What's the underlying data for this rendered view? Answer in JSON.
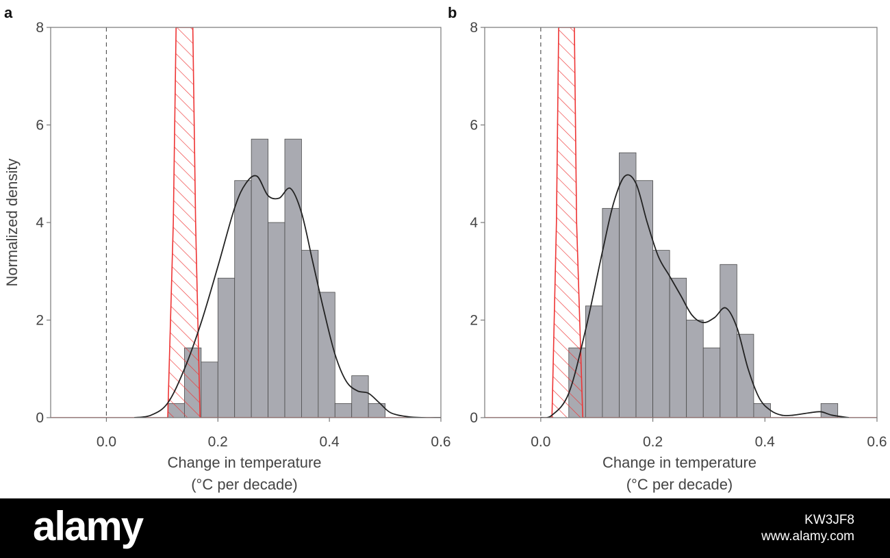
{
  "chart_data": [
    {
      "type": "bar",
      "panel_label": "a",
      "title": "",
      "xlabel": [
        "Change in temperature",
        "(°C per decade)"
      ],
      "ylabel": "Normalized density",
      "xlim": [
        -0.1,
        0.6
      ],
      "ylim": [
        0,
        8
      ],
      "xticks": [
        0.0,
        0.2,
        0.4,
        0.6
      ],
      "xtick_labels": [
        "0.0",
        "0.2",
        "0.4",
        "0.6"
      ],
      "yticks": [
        0,
        2,
        4,
        6,
        8
      ],
      "ytick_labels": [
        "0",
        "2",
        "4",
        "6",
        "8"
      ],
      "reference_line_x": 0.0,
      "histogram": {
        "bin_edges": [
          0.11,
          0.14,
          0.17,
          0.2,
          0.23,
          0.26,
          0.29,
          0.32,
          0.35,
          0.38,
          0.41,
          0.44,
          0.47,
          0.5
        ],
        "values": [
          0.29,
          1.43,
          1.14,
          2.86,
          4.86,
          5.71,
          4.0,
          5.71,
          3.43,
          2.57,
          0.29,
          0.86,
          0.29
        ],
        "color": "#a9aab1"
      },
      "density_curve": {
        "x": [
          0.05,
          0.08,
          0.11,
          0.14,
          0.17,
          0.2,
          0.23,
          0.25,
          0.27,
          0.29,
          0.31,
          0.33,
          0.35,
          0.37,
          0.39,
          0.41,
          0.43,
          0.45,
          0.47,
          0.49,
          0.51,
          0.54,
          0.57,
          0.6
        ],
        "y": [
          0.0,
          0.05,
          0.3,
          1.0,
          1.95,
          3.1,
          4.3,
          4.8,
          4.95,
          4.55,
          4.5,
          4.7,
          4.2,
          3.2,
          2.2,
          1.3,
          0.75,
          0.55,
          0.5,
          0.3,
          0.1,
          0.02,
          0.0,
          0.0
        ],
        "color": "#222222"
      },
      "reference_distribution": {
        "x": [
          -0.1,
          0.11,
          0.12,
          0.125,
          0.155,
          0.16,
          0.168,
          0.6
        ],
        "y": [
          0.0,
          0.0,
          4.0,
          8.0,
          8.0,
          4.0,
          0.0,
          0.0
        ],
        "color": "#ee3333",
        "fill": "hatched"
      }
    },
    {
      "type": "bar",
      "panel_label": "b",
      "title": "",
      "xlabel": [
        "Change in temperature",
        "(°C per decade)"
      ],
      "ylabel": "",
      "xlim": [
        -0.1,
        0.6
      ],
      "ylim": [
        0,
        8
      ],
      "xticks": [
        0.0,
        0.2,
        0.4,
        0.6
      ],
      "xtick_labels": [
        "0.0",
        "0.2",
        "0.4",
        "0.6"
      ],
      "yticks": [
        0,
        2,
        4,
        6,
        8
      ],
      "ytick_labels": [
        "0",
        "2",
        "4",
        "6",
        "8"
      ],
      "reference_line_x": 0.0,
      "histogram": {
        "bin_edges": [
          0.05,
          0.08,
          0.11,
          0.14,
          0.17,
          0.2,
          0.23,
          0.26,
          0.29,
          0.32,
          0.35,
          0.38,
          0.41,
          0.44,
          0.47,
          0.5,
          0.53
        ],
        "values": [
          1.43,
          2.29,
          4.29,
          5.43,
          4.86,
          3.43,
          2.86,
          2.0,
          1.43,
          3.14,
          1.71,
          0.29,
          0.0,
          0.0,
          0.0,
          0.29
        ],
        "color": "#a9aab1"
      },
      "density_curve": {
        "x": [
          0.0,
          0.02,
          0.05,
          0.08,
          0.11,
          0.13,
          0.15,
          0.17,
          0.19,
          0.21,
          0.23,
          0.25,
          0.27,
          0.29,
          0.31,
          0.33,
          0.35,
          0.37,
          0.39,
          0.41,
          0.43,
          0.45,
          0.48,
          0.5,
          0.52,
          0.55
        ],
        "y": [
          0.0,
          0.05,
          0.5,
          1.8,
          3.4,
          4.4,
          4.95,
          4.8,
          4.0,
          3.3,
          2.9,
          2.5,
          2.1,
          1.95,
          2.05,
          2.25,
          1.85,
          1.0,
          0.4,
          0.15,
          0.05,
          0.05,
          0.1,
          0.12,
          0.05,
          0.0
        ],
        "color": "#222222"
      },
      "reference_distribution": {
        "x": [
          -0.1,
          0.02,
          0.028,
          0.032,
          0.06,
          0.064,
          0.075,
          0.6
        ],
        "y": [
          0.0,
          0.0,
          4.0,
          8.0,
          8.0,
          4.0,
          0.0,
          0.0
        ],
        "color": "#ee3333",
        "fill": "hatched"
      }
    }
  ],
  "watermark": {
    "logo": "alamy",
    "image_id": "KW3JF8",
    "site": "www.alamy.com"
  }
}
